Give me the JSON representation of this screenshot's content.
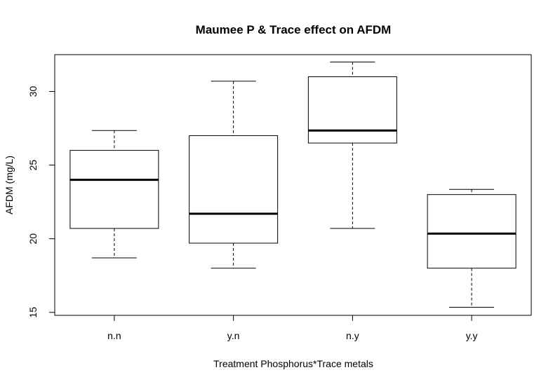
{
  "chart_data": {
    "type": "boxplot",
    "title": "Maumee P & Trace effect on AFDM",
    "xlabel": "Treatment Phosphorus*Trace metals",
    "ylabel": "AFDM (mg/L)",
    "ylim": [
      14.8,
      32.5
    ],
    "yticks": [
      15,
      20,
      25,
      30
    ],
    "categories": [
      "n.n",
      "y.n",
      "n.y",
      "y.y"
    ],
    "boxes": [
      {
        "name": "n.n",
        "whisker_low": 18.7,
        "q1": 20.7,
        "median": 24.0,
        "q3": 26.0,
        "whisker_high": 27.35
      },
      {
        "name": "y.n",
        "whisker_low": 18.0,
        "q1": 19.7,
        "median": 21.7,
        "q3": 27.0,
        "whisker_high": 30.7
      },
      {
        "name": "n.y",
        "whisker_low": 20.7,
        "q1": 26.5,
        "median": 27.35,
        "q3": 31.0,
        "whisker_high": 32.0
      },
      {
        "name": "y.y",
        "whisker_low": 15.35,
        "q1": 18.0,
        "median": 20.35,
        "q3": 23.0,
        "whisker_high": 23.35
      }
    ]
  }
}
